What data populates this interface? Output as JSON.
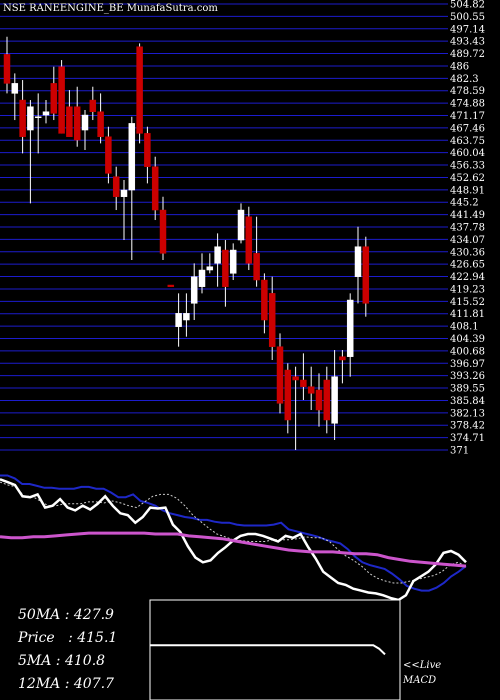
{
  "chart_data": {
    "type": "candlestick",
    "title": "NSE RANEENGINE_BE MunafaSutra.com",
    "y_ticks": [
      "504.82",
      "500.55",
      "497.14",
      "493.43",
      "489.72",
      "486",
      "482.3",
      "478.59",
      "474.88",
      "471.17",
      "467.46",
      "463.75",
      "460.04",
      "456.33",
      "452.62",
      "448.91",
      "445.2",
      "441.49",
      "437.78",
      "434.07",
      "430.36",
      "426.65",
      "422.94",
      "419.23",
      "415.52",
      "411.81",
      "408.1",
      "404.39",
      "400.68",
      "396.97",
      "393.26",
      "389.55",
      "385.84",
      "382.13",
      "378.42",
      "374.71",
      "371"
    ],
    "ylim": [
      371,
      504.82
    ],
    "candles": [
      {
        "o": 489.7,
        "h": 495.0,
        "l": 478.0,
        "c": 481.0
      },
      {
        "o": 478.0,
        "h": 484.0,
        "l": 470.0,
        "c": 481.0
      },
      {
        "o": 476.0,
        "h": 482.0,
        "l": 460.0,
        "c": 465.0
      },
      {
        "o": 467.0,
        "h": 476.0,
        "l": 445.0,
        "c": 474.0
      },
      {
        "o": 471.0,
        "h": 478.0,
        "l": 460.0,
        "c": 471.0
      },
      {
        "o": 471.5,
        "h": 476.0,
        "l": 469.0,
        "c": 472.5
      },
      {
        "o": 481.0,
        "h": 486.0,
        "l": 470.0,
        "c": 472.0
      },
      {
        "o": 486.0,
        "h": 488.0,
        "l": 466.0,
        "c": 466.0
      },
      {
        "o": 474.0,
        "h": 479.0,
        "l": 465.0,
        "c": 465.0
      },
      {
        "o": 474.0,
        "h": 480.0,
        "l": 462.0,
        "c": 464.0
      },
      {
        "o": 467.0,
        "h": 473.0,
        "l": 461.0,
        "c": 471.5
      },
      {
        "o": 476.0,
        "h": 480.0,
        "l": 470.0,
        "c": 472.5
      },
      {
        "o": 472.5,
        "h": 478.0,
        "l": 463.0,
        "c": 465.0
      },
      {
        "o": 465.0,
        "h": 468.0,
        "l": 451.0,
        "c": 454.0
      },
      {
        "o": 453.0,
        "h": 456.0,
        "l": 443.0,
        "c": 447.0
      },
      {
        "o": 447.0,
        "h": 452.0,
        "l": 434.0,
        "c": 449.0
      },
      {
        "o": 449.0,
        "h": 471.0,
        "l": 428.0,
        "c": 469.0
      },
      {
        "o": 492.0,
        "h": 493.0,
        "l": 463.0,
        "c": 466.0
      },
      {
        "o": 466.0,
        "h": 468.0,
        "l": 451.0,
        "c": 456.0
      },
      {
        "o": 456.0,
        "h": 459.0,
        "l": 440.0,
        "c": 443.0
      },
      {
        "o": 443.0,
        "h": 447.0,
        "l": 428.0,
        "c": 430.0
      },
      {
        "o": 420.5,
        "h": 420.5,
        "l": 420.0,
        "c": 420.0
      },
      {
        "o": 408.0,
        "h": 418.0,
        "l": 402.0,
        "c": 412.0
      },
      {
        "o": 410.0,
        "h": 418.0,
        "l": 405.0,
        "c": 412.0
      },
      {
        "o": 415.0,
        "h": 427.0,
        "l": 410.0,
        "c": 423.0
      },
      {
        "o": 420.0,
        "h": 430.0,
        "l": 418.0,
        "c": 425.0
      },
      {
        "o": 425.0,
        "h": 430.0,
        "l": 424.0,
        "c": 426.0
      },
      {
        "o": 427.0,
        "h": 436.0,
        "l": 420.0,
        "c": 432.0
      },
      {
        "o": 431.0,
        "h": 434.0,
        "l": 414.0,
        "c": 420.0
      },
      {
        "o": 424.0,
        "h": 433.0,
        "l": 422.0,
        "c": 431.0
      },
      {
        "o": 434.0,
        "h": 445.0,
        "l": 433.0,
        "c": 443.0
      },
      {
        "o": 441.0,
        "h": 444.0,
        "l": 425.0,
        "c": 427.0
      },
      {
        "o": 430.0,
        "h": 441.0,
        "l": 420.0,
        "c": 422.0
      },
      {
        "o": 422.0,
        "h": 424.0,
        "l": 406.0,
        "c": 410.0
      },
      {
        "o": 418.0,
        "h": 423.0,
        "l": 398.0,
        "c": 402.0
      },
      {
        "o": 402.0,
        "h": 406.0,
        "l": 382.0,
        "c": 385.0
      },
      {
        "o": 395.0,
        "h": 397.0,
        "l": 376.0,
        "c": 380.0
      },
      {
        "o": 393.0,
        "h": 396.0,
        "l": 371.0,
        "c": 392.0
      },
      {
        "o": 392.0,
        "h": 400.0,
        "l": 386.0,
        "c": 390.0
      },
      {
        "o": 390.0,
        "h": 396.0,
        "l": 383.0,
        "c": 388.0
      },
      {
        "o": 389.0,
        "h": 394.0,
        "l": 378.0,
        "c": 383.0
      },
      {
        "o": 392.0,
        "h": 396.0,
        "l": 376.0,
        "c": 380.0
      },
      {
        "o": 379.0,
        "h": 401.0,
        "l": 374.0,
        "c": 393.0
      },
      {
        "o": 399.0,
        "h": 401.0,
        "l": 391.0,
        "c": 398.0
      },
      {
        "o": 399.0,
        "h": 418.0,
        "l": 393.0,
        "c": 416.0
      },
      {
        "o": 423.0,
        "h": 438.0,
        "l": 415.0,
        "c": 432.0
      },
      {
        "o": 432.0,
        "h": 435.0,
        "l": 411.0,
        "c": 415.0
      }
    ],
    "indicator_series": [
      {
        "values": [
          0.92,
          0.92,
          0.89,
          0.83,
          0.83,
          0.81,
          0.79,
          0.79,
          0.78,
          0.78,
          0.78,
          0.8,
          0.8,
          0.78,
          0.78,
          0.74,
          0.69,
          0.69,
          0.72,
          0.65,
          0.63,
          0.6,
          0.55,
          0.52,
          0.5,
          0.48,
          0.47,
          0.45,
          0.45,
          0.43,
          0.42,
          0.42,
          0.4,
          0.39,
          0.39,
          0.39,
          0.39,
          0.4,
          0.42,
          0.35,
          0.33,
          0.31,
          0.29,
          0.27,
          0.24,
          0.22,
          0.2,
          0.14,
          0.06,
          0.0,
          -0.03,
          -0.05,
          -0.07,
          -0.12,
          -0.18,
          -0.25,
          -0.28,
          -0.3,
          -0.3,
          -0.27,
          -0.22,
          -0.15,
          -0.1,
          -0.04
        ]
      },
      {
        "values": [
          0.85,
          0.82,
          0.8,
          0.7,
          0.7,
          0.65,
          0.6,
          0.6,
          0.62,
          0.62,
          0.62,
          0.64,
          0.64,
          0.63,
          0.65,
          0.63,
          0.6,
          0.58,
          0.64,
          0.7,
          0.72,
          0.72,
          0.68,
          0.6,
          0.5,
          0.43,
          0.36,
          0.3,
          0.27,
          0.24,
          0.23,
          0.22,
          0.22,
          0.22,
          0.24,
          0.24,
          0.24,
          0.25,
          0.27,
          0.26,
          0.26,
          0.22,
          0.14,
          0.07,
          0.02,
          -0.04,
          -0.12,
          -0.17,
          -0.2,
          -0.22,
          -0.22,
          -0.2,
          -0.18,
          -0.16,
          -0.14,
          -0.1,
          -0.03,
          0.0,
          -0.04
        ]
      },
      {
        "values": [
          0.88,
          0.85,
          0.82,
          0.7,
          0.69,
          0.72,
          0.58,
          0.6,
          0.67,
          0.58,
          0.55,
          0.6,
          0.56,
          0.62,
          0.7,
          0.6,
          0.52,
          0.5,
          0.42,
          0.48,
          0.58,
          0.57,
          0.58,
          0.4,
          0.32,
          0.17,
          0.05,
          0.0,
          0.02,
          0.1,
          0.16,
          0.23,
          0.28,
          0.3,
          0.3,
          0.28,
          0.25,
          0.22,
          0.28,
          0.26,
          0.3,
          0.16,
          0.04,
          -0.1,
          -0.16,
          -0.22,
          -0.24,
          -0.28,
          -0.3,
          -0.32,
          -0.33,
          -0.35,
          -0.38,
          -0.4,
          -0.35,
          -0.2,
          -0.15,
          -0.1,
          -0.02,
          0.1,
          0.12,
          0.08,
          0.0
        ]
      }
    ],
    "ma_series": {
      "values": [
        0.27,
        0.26,
        0.26,
        0.27,
        0.27,
        0.28,
        0.29,
        0.3,
        0.31,
        0.31,
        0.31,
        0.31,
        0.31,
        0.31,
        0.3,
        0.3,
        0.3,
        0.28,
        0.27,
        0.26,
        0.25,
        0.23,
        0.21,
        0.19,
        0.17,
        0.15,
        0.13,
        0.12,
        0.11,
        0.11,
        0.11,
        0.1,
        0.09,
        0.09,
        0.08,
        0.05,
        0.03,
        0.01,
        0.0,
        -0.01,
        -0.02,
        -0.03,
        -0.04
      ]
    },
    "macd_series": {
      "values": [
        0.96,
        0.96,
        0.96,
        0.96,
        0.96,
        0.96,
        0.96,
        0.96,
        0.96,
        0.96,
        0.96,
        0.96,
        0.96,
        0.96,
        0.96,
        0.96,
        0.96,
        0.96,
        0.96,
        0.96,
        0.96,
        0.96,
        0.96,
        0.96,
        0.96,
        0.96,
        0.96,
        0.96,
        0.96,
        0.96,
        0.96,
        0.96,
        0.96,
        0.96,
        0.96,
        0.96,
        0.96,
        0.96,
        0.96,
        0.9,
        0.8
      ]
    },
    "colors": {
      "up": "#ffffff",
      "down": "#cc0000",
      "grid": "#1c1ccc",
      "ma_band": "#cc55cc",
      "blue_line": "#1e28c8",
      "white_line": "#ffffff"
    }
  },
  "stats": {
    "ma50": "50MA : 427.9",
    "price": "Price   : 415.1",
    "ma5": "5MA : 410.8",
    "ma12": "12MA : 407.7"
  },
  "legend": {
    "live": "<<Live",
    "macd": "MACD"
  }
}
